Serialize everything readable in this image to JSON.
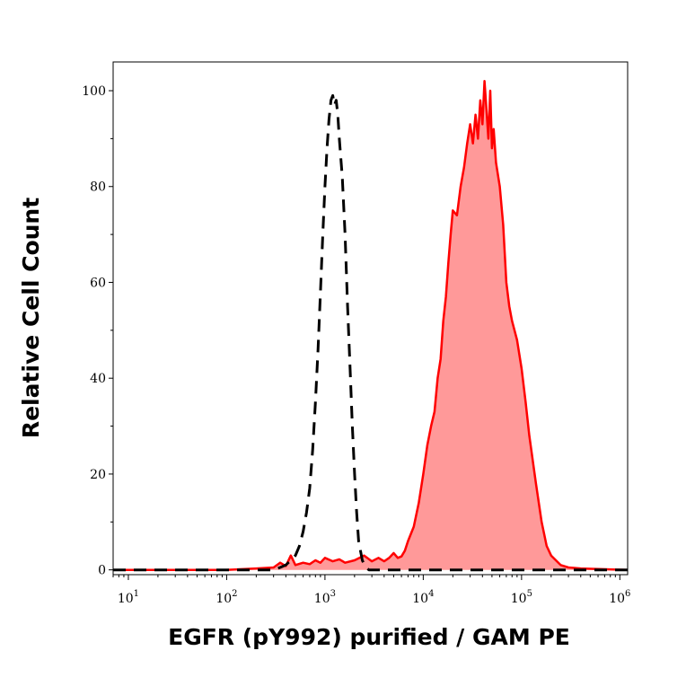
{
  "chart_data": {
    "type": "area",
    "title": "",
    "xlabel": "EGFR (pY992) purified / GAM PE",
    "ylabel": "Relative Cell Count",
    "x_scale": "log",
    "xlim": [
      7,
      1200000
    ],
    "ylim": [
      -1,
      106
    ],
    "x_ticks": [
      {
        "value": 10,
        "base": "10",
        "exp": "1"
      },
      {
        "value": 100,
        "base": "10",
        "exp": "2"
      },
      {
        "value": 1000,
        "base": "10",
        "exp": "3"
      },
      {
        "value": 10000,
        "base": "10",
        "exp": "4"
      },
      {
        "value": 100000,
        "base": "10",
        "exp": "5"
      },
      {
        "value": 1000000,
        "base": "10",
        "exp": "6"
      }
    ],
    "y_ticks": [
      {
        "value": 0,
        "label": "0"
      },
      {
        "value": 20,
        "label": "20"
      },
      {
        "value": 40,
        "label": "40"
      },
      {
        "value": 60,
        "label": "60"
      },
      {
        "value": 80,
        "label": "80"
      },
      {
        "value": 100,
        "label": "100"
      }
    ],
    "grid": false,
    "series": [
      {
        "style": "filled",
        "color": "#ff0000",
        "fill": "#ff9999",
        "x": [
          7,
          100,
          200,
          300,
          350,
          400,
          450,
          500,
          600,
          700,
          800,
          900,
          1000,
          1200,
          1400,
          1600,
          2000,
          2500,
          3000,
          3500,
          4000,
          4500,
          5000,
          5500,
          6000,
          6500,
          7000,
          8000,
          9000,
          10000,
          11000,
          12000,
          13000,
          14000,
          15000,
          16000,
          17000,
          18000,
          19000,
          20000,
          22000,
          24000,
          26000,
          28000,
          30000,
          32000,
          34000,
          36000,
          38000,
          40000,
          42000,
          44000,
          46000,
          48000,
          50000,
          52000,
          55000,
          60000,
          65000,
          70000,
          75000,
          80000,
          90000,
          100000,
          110000,
          120000,
          140000,
          160000,
          180000,
          200000,
          250000,
          300000,
          400000,
          1200000
        ],
        "y": [
          0,
          0,
          0.3,
          0.5,
          1.5,
          0.8,
          3,
          1,
          1.5,
          1.2,
          2,
          1.5,
          2.5,
          1.8,
          2.2,
          1.5,
          2,
          3,
          1.8,
          2.5,
          1.8,
          2.5,
          3.5,
          2.5,
          2.8,
          4,
          6,
          9,
          14,
          20,
          26,
          30,
          33,
          40,
          44,
          52,
          57,
          64,
          70,
          75,
          74,
          80,
          84,
          89,
          93,
          89,
          95,
          90,
          98,
          93,
          102,
          96,
          90,
          100,
          88,
          92,
          85,
          80,
          72,
          60,
          55,
          52,
          48,
          42,
          35,
          28,
          18,
          10,
          5,
          3,
          1,
          0.5,
          0.3,
          0
        ]
      },
      {
        "style": "dashed",
        "color": "#000000",
        "x": [
          7,
          200,
          300,
          350,
          400,
          450,
          500,
          550,
          600,
          650,
          700,
          750,
          800,
          850,
          900,
          950,
          1000,
          1050,
          1100,
          1150,
          1200,
          1250,
          1300,
          1350,
          1400,
          1500,
          1600,
          1700,
          1800,
          1900,
          2000,
          2100,
          2200,
          2400,
          2600,
          2800,
          3000,
          3500,
          1200000
        ],
        "y": [
          0,
          0,
          0,
          0.5,
          1,
          2,
          3,
          5,
          8,
          12,
          17,
          25,
          35,
          46,
          58,
          70,
          80,
          88,
          94,
          98,
          99,
          97,
          98,
          95,
          90,
          82,
          70,
          55,
          42,
          30,
          20,
          12,
          6,
          2,
          0.5,
          0,
          0,
          0,
          0
        ]
      }
    ]
  }
}
